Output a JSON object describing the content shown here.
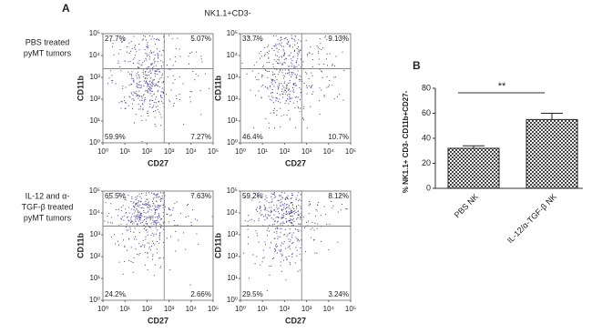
{
  "figure": {
    "panel_labels": [
      "A",
      "B"
    ],
    "header": "NK1.1+CD3-",
    "row_labels": [
      [
        "PBS treated",
        "pyMT tumors"
      ],
      [
        "IL-12 and α-",
        "TGF-β treated",
        "pyMT tumors"
      ]
    ]
  },
  "chart_data": [
    {
      "type": "quadrant",
      "xlabel": "CD27",
      "ylabel": "CD11b",
      "log": true,
      "color": "#3c3c9c",
      "xlim": [
        1,
        100000
      ],
      "ylim": [
        1,
        100000
      ],
      "xticks": [
        {
          "value": 1,
          "label": "10⁰"
        },
        {
          "value": 10,
          "label": "10¹"
        },
        {
          "value": 100,
          "label": "10²"
        },
        {
          "value": 1000,
          "label": "10³"
        },
        {
          "value": 10000,
          "label": "10⁴"
        },
        {
          "value": 100000,
          "label": "10⁵"
        }
      ],
      "yticks": [
        {
          "value": 1,
          "label": "10⁰"
        },
        {
          "value": 10,
          "label": "10¹"
        },
        {
          "value": 100,
          "label": "10²"
        },
        {
          "value": 1000,
          "label": "10³"
        },
        {
          "value": 10000,
          "label": "10⁴"
        },
        {
          "value": 100000,
          "label": "10⁵"
        }
      ],
      "gate": {
        "x": 600,
        "y": 2500
      },
      "values": [
        27.7,
        5.07,
        59.9,
        7.27
      ],
      "value_labels": [
        "27.7%",
        "5.07%",
        "59.9%",
        "7.27%"
      ]
    },
    {
      "type": "quadrant",
      "xlabel": "CD27",
      "ylabel": "CD11b",
      "log": true,
      "color": "#3c3c9c",
      "xlim": [
        1,
        100000
      ],
      "ylim": [
        1,
        100000
      ],
      "xticks": [
        {
          "value": 1,
          "label": "10⁰"
        },
        {
          "value": 10,
          "label": "10¹"
        },
        {
          "value": 100,
          "label": "10²"
        },
        {
          "value": 1000,
          "label": "10³"
        },
        {
          "value": 10000,
          "label": "10⁴"
        },
        {
          "value": 100000,
          "label": "10⁵"
        }
      ],
      "yticks": [
        {
          "value": 1,
          "label": "10⁰"
        },
        {
          "value": 10,
          "label": "10¹"
        },
        {
          "value": 100,
          "label": "10²"
        },
        {
          "value": 1000,
          "label": "10³"
        },
        {
          "value": 10000,
          "label": "10⁴"
        },
        {
          "value": 100000,
          "label": "10⁵"
        }
      ],
      "gate": {
        "x": 600,
        "y": 2500
      },
      "values": [
        33.7,
        9.13,
        46.4,
        10.7
      ],
      "value_labels": [
        "33.7%",
        "9.13%",
        "46.4%",
        "10.7%"
      ]
    },
    {
      "type": "quadrant",
      "xlabel": "CD27",
      "ylabel": "CD11b",
      "log": true,
      "color": "#3c3c9c",
      "xlim": [
        1,
        100000
      ],
      "ylim": [
        1,
        100000
      ],
      "xticks": [
        {
          "value": 1,
          "label": "10⁰"
        },
        {
          "value": 10,
          "label": "10¹"
        },
        {
          "value": 100,
          "label": "10²"
        },
        {
          "value": 1000,
          "label": "10³"
        },
        {
          "value": 10000,
          "label": "10⁴"
        },
        {
          "value": 100000,
          "label": "10⁵"
        }
      ],
      "yticks": [
        {
          "value": 1,
          "label": "10⁰"
        },
        {
          "value": 10,
          "label": "10¹"
        },
        {
          "value": 100,
          "label": "10²"
        },
        {
          "value": 1000,
          "label": "10³"
        },
        {
          "value": 10000,
          "label": "10⁴"
        },
        {
          "value": 100000,
          "label": "10⁵"
        }
      ],
      "gate": {
        "x": 600,
        "y": 2500
      },
      "values": [
        65.5,
        7.63,
        24.2,
        2.66
      ],
      "value_labels": [
        "65.5%",
        "7.63%",
        "24.2%",
        "2.66%"
      ]
    },
    {
      "type": "quadrant",
      "xlabel": "CD27",
      "ylabel": "CD11b",
      "log": true,
      "color": "#3c3c9c",
      "xlim": [
        1,
        100000
      ],
      "ylim": [
        1,
        100000
      ],
      "xticks": [
        {
          "value": 1,
          "label": "10⁰"
        },
        {
          "value": 10,
          "label": "10¹"
        },
        {
          "value": 100,
          "label": "10²"
        },
        {
          "value": 1000,
          "label": "10³"
        },
        {
          "value": 10000,
          "label": "10⁴"
        },
        {
          "value": 100000,
          "label": "10⁵"
        }
      ],
      "yticks": [
        {
          "value": 1,
          "label": "10⁰"
        },
        {
          "value": 10,
          "label": "10¹"
        },
        {
          "value": 100,
          "label": "10²"
        },
        {
          "value": 1000,
          "label": "10³"
        },
        {
          "value": 10000,
          "label": "10⁴"
        },
        {
          "value": 100000,
          "label": "10⁵"
        }
      ],
      "gate": {
        "x": 600,
        "y": 2500
      },
      "values": [
        59.2,
        8.12,
        29.5,
        3.24
      ],
      "value_labels": [
        "59.2%",
        "8.12%",
        "29.5%",
        "3.24%"
      ]
    },
    {
      "type": "bar",
      "ylabel": "% NK1.1+ CD3- CD11b+CD27-",
      "categories": [
        "PBS NK",
        "IL-12/α-TGF-β NK"
      ],
      "values": [
        32,
        55
      ],
      "errors": [
        2,
        5
      ],
      "color": "#444444",
      "ylim": [
        0,
        80
      ],
      "yticks": [
        0,
        20,
        40,
        60,
        80
      ],
      "annotation": "**"
    }
  ]
}
